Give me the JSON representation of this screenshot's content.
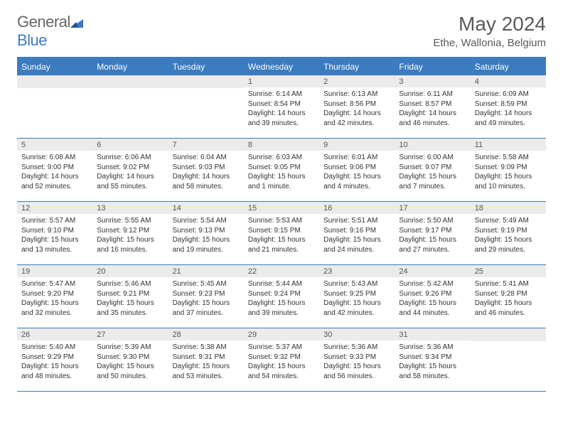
{
  "brand": {
    "general": "General",
    "blue": "Blue"
  },
  "title": "May 2024",
  "location": "Ethe, Wallonia, Belgium",
  "colors": {
    "header_bg": "#3b7bbf",
    "header_text": "#ffffff",
    "daynum_bg": "#ebebeb",
    "text": "#333333",
    "title_text": "#5a5a5a",
    "border": "#3b7bbf"
  },
  "weekdays": [
    "Sunday",
    "Monday",
    "Tuesday",
    "Wednesday",
    "Thursday",
    "Friday",
    "Saturday"
  ],
  "weeks": [
    [
      {
        "n": "",
        "sr": "",
        "ss": "",
        "dl": ""
      },
      {
        "n": "",
        "sr": "",
        "ss": "",
        "dl": ""
      },
      {
        "n": "",
        "sr": "",
        "ss": "",
        "dl": ""
      },
      {
        "n": "1",
        "sr": "Sunrise: 6:14 AM",
        "ss": "Sunset: 8:54 PM",
        "dl": "Daylight: 14 hours and 39 minutes."
      },
      {
        "n": "2",
        "sr": "Sunrise: 6:13 AM",
        "ss": "Sunset: 8:56 PM",
        "dl": "Daylight: 14 hours and 42 minutes."
      },
      {
        "n": "3",
        "sr": "Sunrise: 6:11 AM",
        "ss": "Sunset: 8:57 PM",
        "dl": "Daylight: 14 hours and 46 minutes."
      },
      {
        "n": "4",
        "sr": "Sunrise: 6:09 AM",
        "ss": "Sunset: 8:59 PM",
        "dl": "Daylight: 14 hours and 49 minutes."
      }
    ],
    [
      {
        "n": "5",
        "sr": "Sunrise: 6:08 AM",
        "ss": "Sunset: 9:00 PM",
        "dl": "Daylight: 14 hours and 52 minutes."
      },
      {
        "n": "6",
        "sr": "Sunrise: 6:06 AM",
        "ss": "Sunset: 9:02 PM",
        "dl": "Daylight: 14 hours and 55 minutes."
      },
      {
        "n": "7",
        "sr": "Sunrise: 6:04 AM",
        "ss": "Sunset: 9:03 PM",
        "dl": "Daylight: 14 hours and 58 minutes."
      },
      {
        "n": "8",
        "sr": "Sunrise: 6:03 AM",
        "ss": "Sunset: 9:05 PM",
        "dl": "Daylight: 15 hours and 1 minute."
      },
      {
        "n": "9",
        "sr": "Sunrise: 6:01 AM",
        "ss": "Sunset: 9:06 PM",
        "dl": "Daylight: 15 hours and 4 minutes."
      },
      {
        "n": "10",
        "sr": "Sunrise: 6:00 AM",
        "ss": "Sunset: 9:07 PM",
        "dl": "Daylight: 15 hours and 7 minutes."
      },
      {
        "n": "11",
        "sr": "Sunrise: 5:58 AM",
        "ss": "Sunset: 9:09 PM",
        "dl": "Daylight: 15 hours and 10 minutes."
      }
    ],
    [
      {
        "n": "12",
        "sr": "Sunrise: 5:57 AM",
        "ss": "Sunset: 9:10 PM",
        "dl": "Daylight: 15 hours and 13 minutes."
      },
      {
        "n": "13",
        "sr": "Sunrise: 5:55 AM",
        "ss": "Sunset: 9:12 PM",
        "dl": "Daylight: 15 hours and 16 minutes."
      },
      {
        "n": "14",
        "sr": "Sunrise: 5:54 AM",
        "ss": "Sunset: 9:13 PM",
        "dl": "Daylight: 15 hours and 19 minutes."
      },
      {
        "n": "15",
        "sr": "Sunrise: 5:53 AM",
        "ss": "Sunset: 9:15 PM",
        "dl": "Daylight: 15 hours and 21 minutes."
      },
      {
        "n": "16",
        "sr": "Sunrise: 5:51 AM",
        "ss": "Sunset: 9:16 PM",
        "dl": "Daylight: 15 hours and 24 minutes."
      },
      {
        "n": "17",
        "sr": "Sunrise: 5:50 AM",
        "ss": "Sunset: 9:17 PM",
        "dl": "Daylight: 15 hours and 27 minutes."
      },
      {
        "n": "18",
        "sr": "Sunrise: 5:49 AM",
        "ss": "Sunset: 9:19 PM",
        "dl": "Daylight: 15 hours and 29 minutes."
      }
    ],
    [
      {
        "n": "19",
        "sr": "Sunrise: 5:47 AM",
        "ss": "Sunset: 9:20 PM",
        "dl": "Daylight: 15 hours and 32 minutes."
      },
      {
        "n": "20",
        "sr": "Sunrise: 5:46 AM",
        "ss": "Sunset: 9:21 PM",
        "dl": "Daylight: 15 hours and 35 minutes."
      },
      {
        "n": "21",
        "sr": "Sunrise: 5:45 AM",
        "ss": "Sunset: 9:23 PM",
        "dl": "Daylight: 15 hours and 37 minutes."
      },
      {
        "n": "22",
        "sr": "Sunrise: 5:44 AM",
        "ss": "Sunset: 9:24 PM",
        "dl": "Daylight: 15 hours and 39 minutes."
      },
      {
        "n": "23",
        "sr": "Sunrise: 5:43 AM",
        "ss": "Sunset: 9:25 PM",
        "dl": "Daylight: 15 hours and 42 minutes."
      },
      {
        "n": "24",
        "sr": "Sunrise: 5:42 AM",
        "ss": "Sunset: 9:26 PM",
        "dl": "Daylight: 15 hours and 44 minutes."
      },
      {
        "n": "25",
        "sr": "Sunrise: 5:41 AM",
        "ss": "Sunset: 9:28 PM",
        "dl": "Daylight: 15 hours and 46 minutes."
      }
    ],
    [
      {
        "n": "26",
        "sr": "Sunrise: 5:40 AM",
        "ss": "Sunset: 9:29 PM",
        "dl": "Daylight: 15 hours and 48 minutes."
      },
      {
        "n": "27",
        "sr": "Sunrise: 5:39 AM",
        "ss": "Sunset: 9:30 PM",
        "dl": "Daylight: 15 hours and 50 minutes."
      },
      {
        "n": "28",
        "sr": "Sunrise: 5:38 AM",
        "ss": "Sunset: 9:31 PM",
        "dl": "Daylight: 15 hours and 53 minutes."
      },
      {
        "n": "29",
        "sr": "Sunrise: 5:37 AM",
        "ss": "Sunset: 9:32 PM",
        "dl": "Daylight: 15 hours and 54 minutes."
      },
      {
        "n": "30",
        "sr": "Sunrise: 5:36 AM",
        "ss": "Sunset: 9:33 PM",
        "dl": "Daylight: 15 hours and 56 minutes."
      },
      {
        "n": "31",
        "sr": "Sunrise: 5:36 AM",
        "ss": "Sunset: 9:34 PM",
        "dl": "Daylight: 15 hours and 58 minutes."
      },
      {
        "n": "",
        "sr": "",
        "ss": "",
        "dl": ""
      }
    ]
  ]
}
